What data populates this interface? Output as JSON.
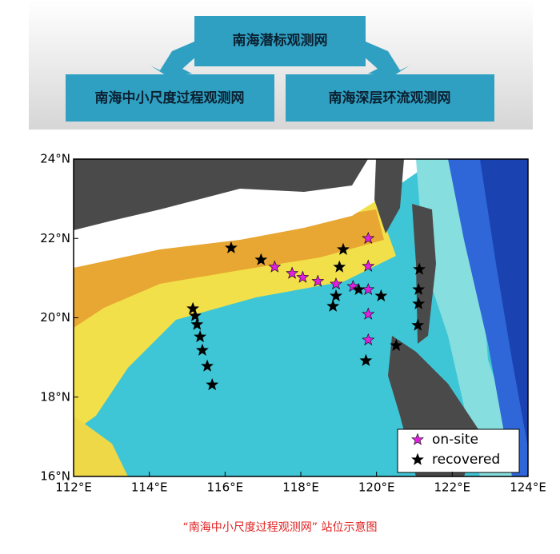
{
  "header": {
    "title": "南海潜标观测网",
    "left": "南海中小尺度过程观测网",
    "right": "南海深层环流观测网"
  },
  "chart_data": {
    "type": "scatter",
    "xlim": [
      112,
      124
    ],
    "ylim": [
      16,
      24
    ],
    "xticks": [
      {
        "value": 112,
        "label": "112°E"
      },
      {
        "value": 114,
        "label": "114°E"
      },
      {
        "value": 116,
        "label": "116°E"
      },
      {
        "value": 118,
        "label": "118°E"
      },
      {
        "value": 120,
        "label": "120°E"
      },
      {
        "value": 122,
        "label": "122°E"
      },
      {
        "value": 124,
        "label": "124°E"
      }
    ],
    "yticks": [
      {
        "value": 16,
        "label": "16°N"
      },
      {
        "value": 18,
        "label": "18°N"
      },
      {
        "value": 20,
        "label": "20°N"
      },
      {
        "value": 22,
        "label": "22°N"
      },
      {
        "value": 24,
        "label": "24°N"
      }
    ],
    "legend": "lower right",
    "series": [
      {
        "name": "on-site",
        "color": "#e020e0",
        "x": [
          119.78,
          117.31,
          117.77,
          118.05,
          118.45,
          118.93,
          119.38,
          119.78,
          119.78,
          119.78,
          119.78
        ],
        "values": [
          22.0,
          21.28,
          21.12,
          21.02,
          20.92,
          20.85,
          20.79,
          21.3,
          20.71,
          20.09,
          19.44
        ]
      },
      {
        "name": "recovered",
        "color": "#000000",
        "x": [
          116.16,
          116.95,
          119.12,
          119.02,
          118.93,
          118.85,
          119.53,
          120.12,
          119.72,
          120.52,
          121.13,
          121.11,
          121.11,
          121.09,
          115.15,
          115.21,
          115.26,
          115.34,
          115.4,
          115.53,
          115.66
        ],
        "values": [
          21.76,
          21.46,
          21.72,
          21.28,
          20.55,
          20.29,
          20.71,
          20.55,
          18.92,
          19.3,
          21.22,
          20.71,
          20.35,
          19.81,
          20.23,
          20.05,
          19.83,
          19.52,
          19.18,
          18.78,
          18.31
        ]
      }
    ]
  },
  "caption": "“南海中小尺度过程观测网” 站位示意图"
}
